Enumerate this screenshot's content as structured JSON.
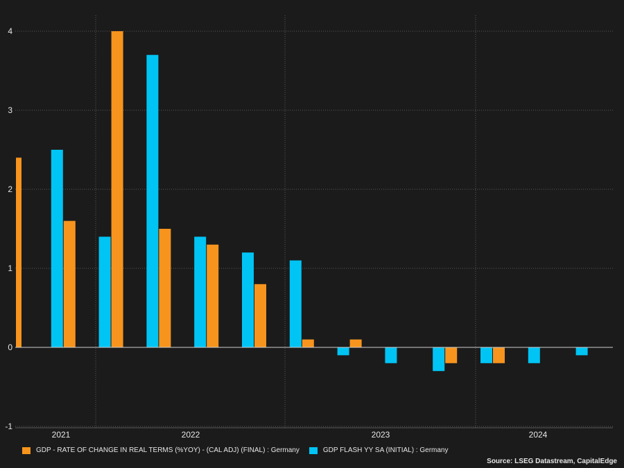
{
  "colors": {
    "background": "#1b1b1b",
    "final": "#f7941d",
    "flash": "#00c4f4",
    "grid": "#5a5a5a",
    "axis": "#cfcfcf",
    "text": "#e6e6e6"
  },
  "legend": {
    "final_label": "GDP - RATE OF CHANGE IN REAL TERMS (%YOY) - (CAL ADJ) (FINAL) : Germany",
    "flash_label": "GDP FLASH YY SA (INITIAL) : Germany"
  },
  "source": "Source: LSEG Datastream, CapitalEdge",
  "chart_data": {
    "type": "bar",
    "ylim": [
      -1,
      4
    ],
    "yticks": [
      -1,
      0,
      1,
      2,
      3,
      4
    ],
    "year_labels": [
      "2021",
      "2022",
      "2023",
      "2024"
    ],
    "grid": true,
    "legend_position": "bottom",
    "series": [
      {
        "name": "GDP - RATE OF CHANGE IN REAL TERMS (%YOY) - (CAL ADJ) (FINAL) : Germany",
        "values": [
          2.4,
          1.6,
          4.0,
          1.5,
          1.3,
          0.8,
          0.1,
          0.1,
          null,
          -0.2,
          -0.2,
          null,
          null
        ]
      },
      {
        "name": "GDP FLASH YY SA (INITIAL) : Germany",
        "values": [
          null,
          2.5,
          1.4,
          3.7,
          1.4,
          1.2,
          1.1,
          -0.1,
          -0.2,
          -0.3,
          -0.2,
          -0.2,
          -0.1
        ]
      }
    ]
  }
}
